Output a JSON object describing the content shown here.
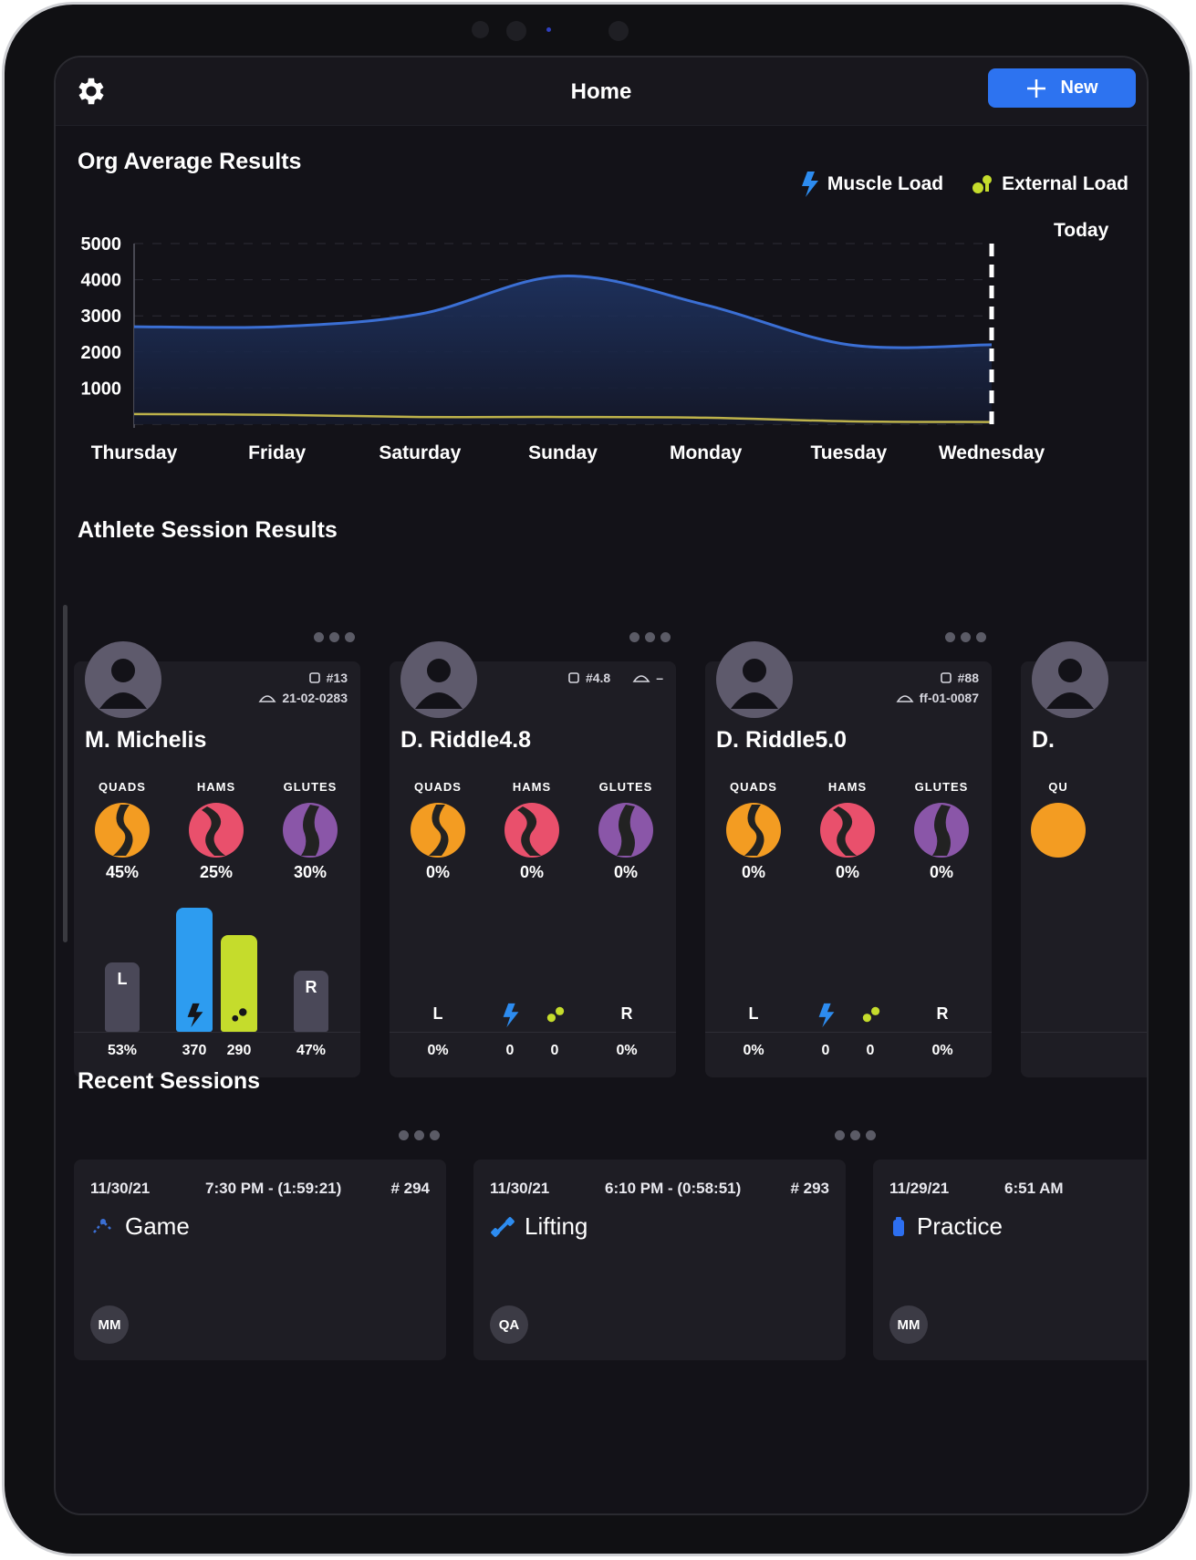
{
  "header": {
    "title": "Home",
    "new_label": "New"
  },
  "org": {
    "title": "Org Average Results",
    "legend": [
      {
        "label": "Muscle Load",
        "icon": "lightning-icon",
        "color": "#2d8cf0"
      },
      {
        "label": "External Load",
        "icon": "dumbbell-icon",
        "color": "#c5dc2c"
      }
    ],
    "today_label": "Today"
  },
  "chart_data": {
    "type": "area",
    "x": [
      "Thursday",
      "Friday",
      "Saturday",
      "Sunday",
      "Monday",
      "Tuesday",
      "Wednesday"
    ],
    "yticks": [
      "5000",
      "4000",
      "3000",
      "2000",
      "1000"
    ],
    "ylim": [
      0,
      5000
    ],
    "series": [
      {
        "name": "Muscle Load",
        "color": "#3b6fd4",
        "values": [
          2700,
          2700,
          3050,
          4100,
          3300,
          2200,
          2200
        ]
      },
      {
        "name": "External Load",
        "color": "#bdb24a",
        "values": [
          280,
          260,
          200,
          200,
          180,
          80,
          60
        ]
      }
    ],
    "grid": true,
    "marker": "Today"
  },
  "athletes": {
    "title": "Athlete Session Results",
    "cards": [
      {
        "name": "M. Michelis",
        "id1": "#13",
        "id2": "21-02-0283",
        "muscles": [
          {
            "label": "QUADS",
            "pct": "45%",
            "color": "#f39c22"
          },
          {
            "label": "HAMS",
            "pct": "25%",
            "color": "#e9506c"
          },
          {
            "label": "GLUTES",
            "pct": "30%",
            "color": "#8a56a8"
          }
        ],
        "left_label": "L",
        "right_label": "R",
        "left_pct": "53%",
        "muscle_load": "370",
        "external_load": "290",
        "right_pct": "47%",
        "bars": {
          "left": 0.53,
          "right": 0.47,
          "muscle": 1.0,
          "external": 0.78
        }
      },
      {
        "name": "D. Riddle4.8",
        "id1": "#4.8",
        "id2": "–",
        "muscles": [
          {
            "label": "QUADS",
            "pct": "0%",
            "color": "#f39c22"
          },
          {
            "label": "HAMS",
            "pct": "0%",
            "color": "#e9506c"
          },
          {
            "label": "GLUTES",
            "pct": "0%",
            "color": "#8a56a8"
          }
        ],
        "left_label": "L",
        "right_label": "R",
        "left_pct": "0%",
        "muscle_load": "0",
        "external_load": "0",
        "right_pct": "0%"
      },
      {
        "name": "D. Riddle5.0",
        "id1": "#88",
        "id2": "ff-01-0087",
        "muscles": [
          {
            "label": "QUADS",
            "pct": "0%",
            "color": "#f39c22"
          },
          {
            "label": "HAMS",
            "pct": "0%",
            "color": "#e9506c"
          },
          {
            "label": "GLUTES",
            "pct": "0%",
            "color": "#8a56a8"
          }
        ],
        "left_label": "L",
        "right_label": "R",
        "left_pct": "0%",
        "muscle_load": "0",
        "external_load": "0",
        "right_pct": "0%"
      },
      {
        "name": "D.",
        "muscles": [
          {
            "label": "QU"
          }
        ]
      }
    ]
  },
  "recent": {
    "title": "Recent Sessions",
    "sessions": [
      {
        "date": "11/30/21",
        "time": "7:30 PM - (1:59:21)",
        "num": "# 294",
        "type": "Game",
        "icon": "game-icon",
        "initials": "MM"
      },
      {
        "date": "11/30/21",
        "time": "6:10 PM - (0:58:51)",
        "num": "# 293",
        "type": "Lifting",
        "icon": "dumbbell-icon",
        "initials": "QA"
      },
      {
        "date": "11/29/21",
        "time": "6:51 AM",
        "num": "",
        "type": "Practice",
        "icon": "practice-icon",
        "initials": "MM"
      }
    ]
  }
}
